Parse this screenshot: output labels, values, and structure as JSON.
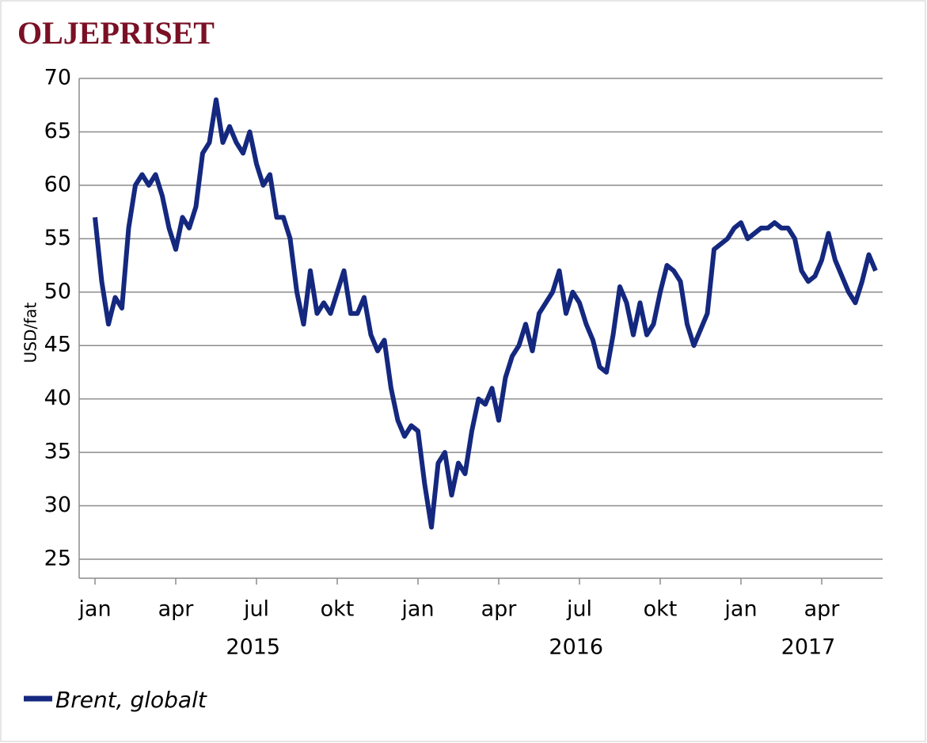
{
  "chart_data": {
    "type": "line",
    "title": "OLJEPRISET",
    "y_label": "USD/fat",
    "categories": [
      "jan",
      null,
      null,
      null,
      null,
      null,
      null,
      null,
      null,
      null,
      null,
      null,
      "apr",
      null,
      null,
      null,
      null,
      null,
      null,
      null,
      null,
      null,
      null,
      null,
      "jul",
      null,
      null,
      null,
      null,
      null,
      null,
      null,
      null,
      null,
      null,
      null,
      "okt",
      null,
      null,
      null,
      null,
      null,
      null,
      null,
      null,
      null,
      null,
      null,
      "jan",
      null,
      null,
      null,
      null,
      null,
      null,
      null,
      null,
      null,
      null,
      null,
      "apr",
      null,
      null,
      null,
      null,
      null,
      null,
      null,
      null,
      null,
      null,
      null,
      "jul",
      null,
      null,
      null,
      null,
      null,
      null,
      null,
      null,
      null,
      null,
      null,
      "okt",
      null,
      null,
      null,
      null,
      null,
      null,
      null,
      null,
      null,
      null,
      null,
      "jan",
      null,
      null,
      null,
      null,
      null,
      null,
      null,
      null,
      null,
      null,
      null,
      "apr",
      null,
      null,
      null,
      null,
      null,
      null,
      null,
      null
    ],
    "years": [
      "2015",
      "2016",
      "2017"
    ],
    "series": [
      {
        "name": "Brent, globalt",
        "color": "#15287f",
        "values": [
          57,
          51,
          47,
          49.5,
          48.5,
          56,
          60,
          61,
          60,
          61,
          59,
          56,
          54,
          57,
          56,
          58,
          63,
          64,
          68,
          64,
          65.5,
          64,
          63,
          65,
          62,
          60,
          61,
          57,
          57,
          55,
          50,
          47,
          52,
          48,
          49,
          48,
          50,
          52,
          48,
          48,
          49.5,
          46,
          44.5,
          45.5,
          41,
          38,
          36.5,
          37.5,
          37,
          32,
          28,
          34,
          35,
          31,
          34,
          33,
          37,
          40,
          39.5,
          41,
          38,
          42,
          44,
          45,
          47,
          44.5,
          48,
          49,
          50,
          52,
          48,
          50,
          49,
          47,
          45.5,
          43,
          42.5,
          46,
          50.5,
          49,
          46,
          49,
          46,
          47,
          50,
          52.5,
          52,
          51,
          47,
          45,
          46.5,
          48,
          54,
          54.5,
          55,
          56,
          56.5,
          55,
          55.5,
          56,
          56,
          56.5,
          56,
          56,
          55,
          52,
          51,
          51.5,
          53,
          55.5,
          53,
          51.5,
          50,
          49,
          51,
          53.5,
          52
        ]
      }
    ],
    "ylim": [
      25,
      70
    ],
    "yticks": [
      25,
      30,
      35,
      40,
      45,
      50,
      55,
      60,
      65,
      70
    ],
    "grid": true
  }
}
